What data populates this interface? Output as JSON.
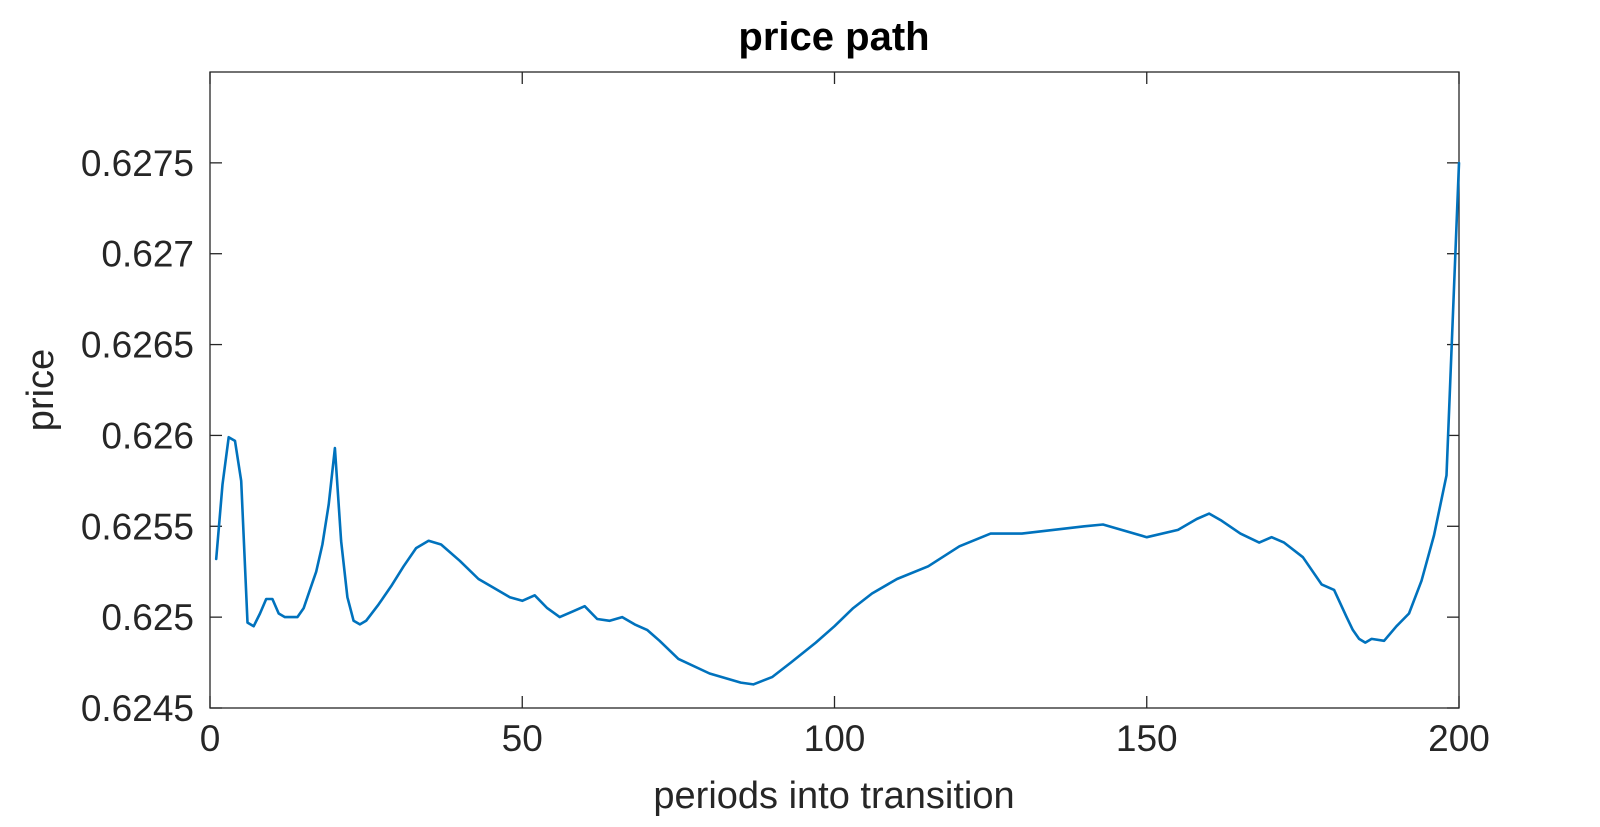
{
  "chart_data": {
    "type": "line",
    "title": "price path",
    "xlabel": "periods into transition",
    "ylabel": "price",
    "xlim": [
      0,
      200
    ],
    "ylim": [
      0.6245,
      0.628
    ],
    "xticks": [
      0,
      50,
      100,
      150,
      200
    ],
    "xtick_labels": [
      "0",
      "50",
      "100",
      "150",
      "200"
    ],
    "yticks": [
      0.6245,
      0.625,
      0.6255,
      0.626,
      0.6265,
      0.627,
      0.6275
    ],
    "ytick_labels": [
      "0.6245",
      "0.625",
      "0.6255",
      "0.626",
      "0.6265",
      "0.627",
      "0.6275"
    ],
    "grid": false,
    "series": [
      {
        "color": "#0072BD",
        "x": [
          1,
          2,
          3,
          4,
          5,
          6,
          7,
          8,
          9,
          10,
          11,
          12,
          13,
          14,
          15,
          16,
          17,
          18,
          19,
          20,
          21,
          22,
          23,
          24,
          25,
          27,
          29,
          31,
          33,
          35,
          37,
          40,
          43,
          45,
          48,
          50,
          52,
          54,
          56,
          58,
          60,
          62,
          64,
          66,
          68,
          70,
          72,
          75,
          80,
          85,
          87,
          90,
          93,
          97,
          100,
          103,
          106,
          110,
          115,
          120,
          125,
          130,
          135,
          140,
          143,
          145,
          150,
          155,
          158,
          160,
          162,
          165,
          168,
          170,
          172,
          175,
          178,
          180,
          182,
          183,
          184,
          185,
          186,
          188,
          190,
          192,
          194,
          196,
          198,
          200
        ],
        "y": [
          0.62532,
          0.62573,
          0.62599,
          0.62597,
          0.62575,
          0.62497,
          0.62495,
          0.62502,
          0.6251,
          0.6251,
          0.62502,
          0.625,
          0.625,
          0.625,
          0.62505,
          0.62515,
          0.62525,
          0.6254,
          0.62562,
          0.62593,
          0.62542,
          0.62511,
          0.62498,
          0.62496,
          0.62498,
          0.62507,
          0.62517,
          0.62528,
          0.62538,
          0.62542,
          0.6254,
          0.62531,
          0.62521,
          0.62517,
          0.62511,
          0.62509,
          0.62512,
          0.62505,
          0.625,
          0.62503,
          0.62506,
          0.62499,
          0.62498,
          0.625,
          0.62496,
          0.62493,
          0.62487,
          0.62477,
          0.62469,
          0.62464,
          0.62463,
          0.62467,
          0.62475,
          0.62486,
          0.62495,
          0.62505,
          0.62513,
          0.62521,
          0.62528,
          0.62539,
          0.62546,
          0.62546,
          0.62548,
          0.6255,
          0.62551,
          0.62549,
          0.62544,
          0.62548,
          0.62554,
          0.62557,
          0.62553,
          0.62546,
          0.62541,
          0.62544,
          0.62541,
          0.62533,
          0.62518,
          0.62515,
          0.625,
          0.62493,
          0.62488,
          0.62486,
          0.62488,
          0.62487,
          0.62495,
          0.62502,
          0.6252,
          0.62545,
          0.62578,
          0.6275
        ]
      }
    ]
  }
}
